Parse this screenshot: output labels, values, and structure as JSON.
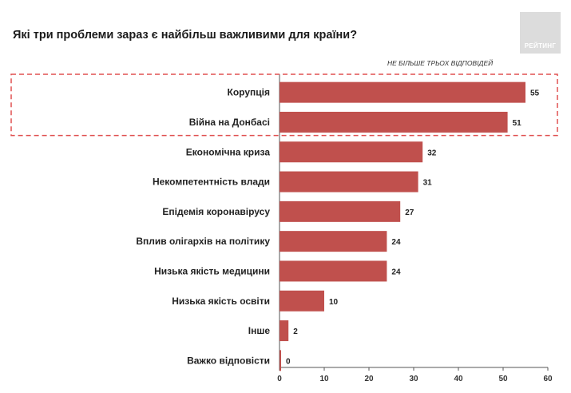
{
  "header": {
    "title": "Які три проблеми зараз є найбільш важливими для країни?",
    "note": "НЕ БІЛЬШЕ ТРЬОХ ВІДПОВІДЕЙ",
    "logo_text": "РЕЙТИНГ"
  },
  "colors": {
    "bar": "#c0504d",
    "highlight": "#e05050"
  },
  "chart_data": {
    "type": "bar",
    "orientation": "horizontal",
    "title": "Які три проблеми зараз є найбільш важливими для країни?",
    "categories": [
      "Корупція",
      "Війна на Донбасі",
      "Економічна криза",
      "Некомпетентність влади",
      "Епідемія коронавірусу",
      "Вплив олігархів на політику",
      "Низька якість медицини",
      "Низька якість освіти",
      "Інше",
      "Важко відповісти"
    ],
    "values": [
      55,
      51,
      32,
      31,
      27,
      24,
      24,
      10,
      2,
      0
    ],
    "xlim": [
      0,
      60
    ],
    "xticks": [
      0,
      10,
      20,
      30,
      40,
      50,
      60
    ],
    "highlighted_categories": [
      "Корупція",
      "Війна на Донбасі"
    ],
    "grid": false,
    "legend": "none"
  }
}
